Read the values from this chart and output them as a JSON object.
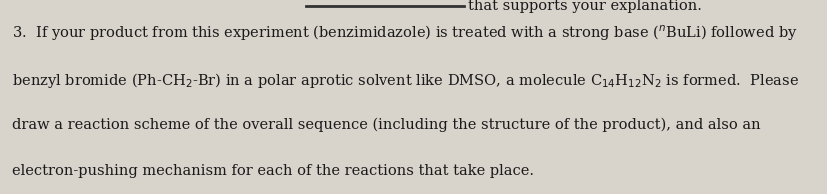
{
  "background_color": "#d8d4cc",
  "text_color": "#1a1a1a",
  "figsize": [
    8.28,
    1.94
  ],
  "dpi": 100,
  "font_size": 10.5,
  "top_bar_color": "#333333",
  "top_right_text": "that supports your explanation.",
  "line1": "3.  If your product from this experiment (benzimidazole) is treated with a strong base ($^n$BuLi) followed by",
  "line2": "benzyl bromide (Ph-CH$_2$-Br) in a polar aprotic solvent like DMSO, a molecule C$_{14}$H$_{12}$N$_2$ is formed.  Please",
  "line3": "draw a reaction scheme of the overall sequence (including the structure of the product), and also an",
  "line4": "electron-pushing mechanism for each of the reactions that take place."
}
